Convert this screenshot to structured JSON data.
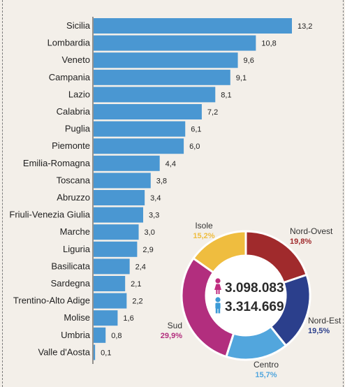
{
  "chart_data": [
    {
      "type": "bar",
      "orientation": "horizontal",
      "categories": [
        "Sicilia",
        "Lombardia",
        "Veneto",
        "Campania",
        "Lazio",
        "Calabria",
        "Puglia",
        "Piemonte",
        "Emilia-Romagna",
        "Toscana",
        "Abruzzo",
        "Friuli-Venezia Giulia",
        "Marche",
        "Liguria",
        "Basilicata",
        "Sardegna",
        "Trentino-Alto Adige",
        "Molise",
        "Umbria",
        "Valle d'Aosta"
      ],
      "values": [
        13.2,
        10.8,
        9.6,
        9.1,
        8.1,
        7.2,
        6.1,
        6.0,
        4.4,
        3.8,
        3.4,
        3.3,
        3.0,
        2.9,
        2.4,
        2.1,
        2.2,
        1.6,
        0.8,
        0.1
      ],
      "value_labels": [
        "13,2",
        "10,8",
        "9,6",
        "9,1",
        "8,1",
        "7,2",
        "6,1",
        "6,0",
        "4,4",
        "3,8",
        "3,4",
        "3,3",
        "3,0",
        "2,9",
        "2,4",
        "2,1",
        "2,2",
        "1,6",
        "0,8",
        "0,1"
      ],
      "color": "#4a97d2"
    },
    {
      "type": "pie",
      "donut": true,
      "segments": [
        {
          "name": "Nord-Ovest",
          "value": 19.8,
          "label": "19,8%",
          "color": "#a02a2c"
        },
        {
          "name": "Nord-Est",
          "value": 19.5,
          "label": "19,5%",
          "color": "#2b3f8c"
        },
        {
          "name": "Centro",
          "value": 15.7,
          "label": "15,7%",
          "color": "#52a6dd"
        },
        {
          "name": "Sud",
          "value": 29.9,
          "label": "29,9%",
          "color": "#b22e7e"
        },
        {
          "name": "Isole",
          "value": 15.2,
          "label": "15,2%",
          "color": "#efbd3f"
        }
      ],
      "center_totals": [
        {
          "icon": "female-icon",
          "value": "3.098.083",
          "color": "#c02d80"
        },
        {
          "icon": "male-icon",
          "value": "3.314.669",
          "color": "#3c9ad6"
        }
      ]
    }
  ]
}
